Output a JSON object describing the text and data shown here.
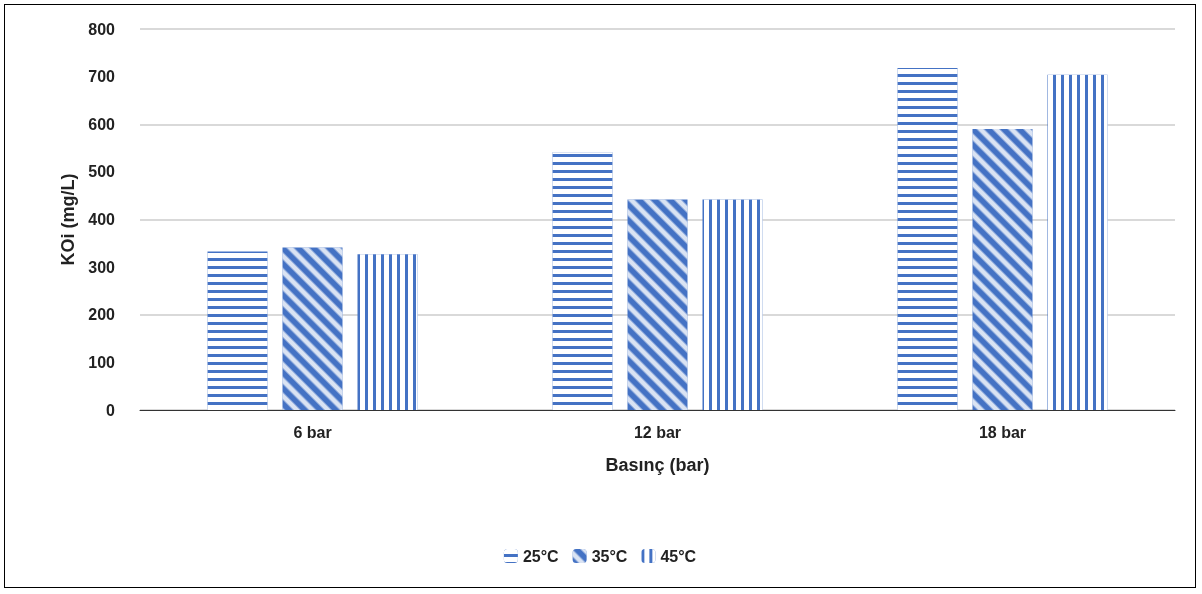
{
  "chart_data": {
    "type": "bar",
    "xlabel": "Basınç (bar)",
    "ylabel": "KOi (mg/L)",
    "categories": [
      "6 bar",
      "12 bar",
      "18 bar"
    ],
    "series": [
      {
        "name": "25°C",
        "color": "#4472c4",
        "values": [
          333,
          541,
          718
        ]
      },
      {
        "name": "35°C",
        "color": "#4472c4",
        "values": [
          341,
          442,
          590
        ]
      },
      {
        "name": "45°C",
        "color": "#4472c4",
        "values": [
          327,
          442,
          704
        ]
      }
    ],
    "ylim": [
      0,
      800
    ],
    "yticks": [
      0,
      100,
      200,
      300,
      400,
      500,
      600,
      700,
      800
    ],
    "grid": "y",
    "legend": "bottom"
  }
}
